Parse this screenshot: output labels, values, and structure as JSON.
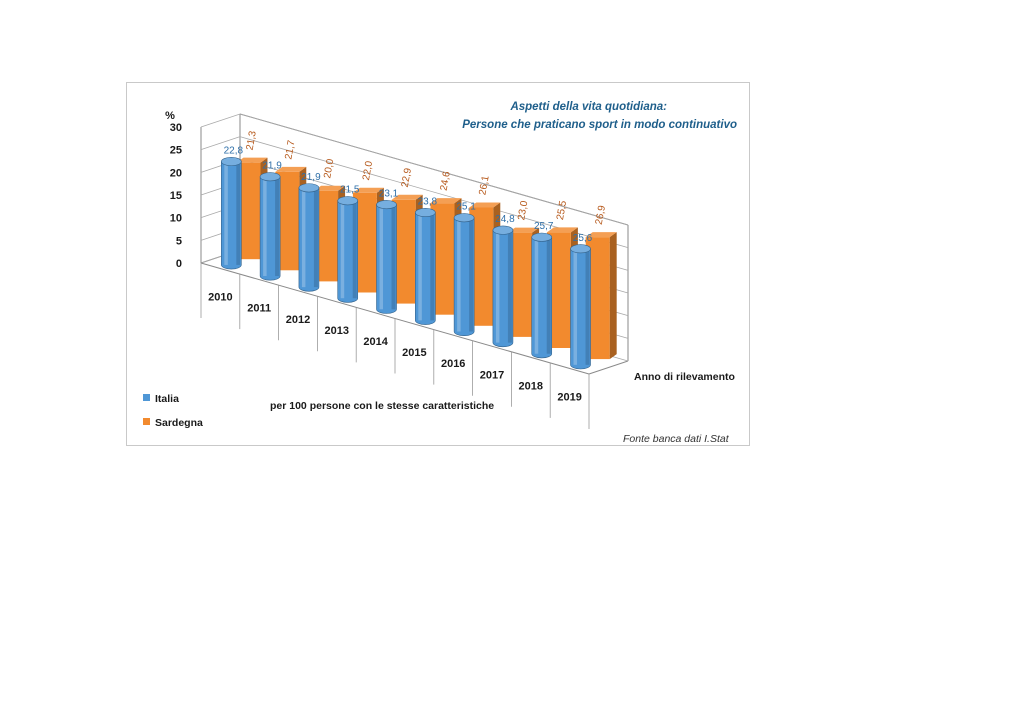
{
  "chart_data": {
    "type": "bar",
    "title_line1": "Aspetti della vita quotidiana:",
    "title_line2": "Persone che praticano sport in modo continuativo",
    "ylabel": "%",
    "xlabel": "Anno di rilevamento",
    "note": "per 100 persone con le stesse caratteristiche",
    "source": "Fonte banca dati I.Stat",
    "ylim": [
      0,
      30
    ],
    "yticks": [
      "0",
      "5",
      "10",
      "15",
      "20",
      "25",
      "30"
    ],
    "categories": [
      "2010",
      "2011",
      "2012",
      "2013",
      "2014",
      "2015",
      "2016",
      "2017",
      "2018",
      "2019"
    ],
    "legend_position": "bottom-left",
    "grid": true,
    "series": [
      {
        "name": "Italia",
        "color": "#4f97d6",
        "label_color": "#2f6fa8",
        "values": [
          22.8,
          21.9,
          21.9,
          21.5,
          23.1,
          23.8,
          25.1,
          24.8,
          25.7,
          25.6
        ],
        "labels": [
          "22,8",
          "21,9",
          "21,9",
          "21,5",
          "23,1",
          "23,8",
          "25,1",
          "24,8",
          "25,7",
          "25,6"
        ]
      },
      {
        "name": "Sardegna",
        "color": "#f28a2e",
        "label_color": "#b6581a",
        "values": [
          21.3,
          21.7,
          20.0,
          22.0,
          22.9,
          24.6,
          26.1,
          23.0,
          25.5,
          26.9
        ],
        "labels": [
          "21,3",
          "21,7",
          "20,0",
          "22,0",
          "22,9",
          "24,6",
          "26,1",
          "23,0",
          "25,5",
          "26,9"
        ]
      }
    ]
  }
}
